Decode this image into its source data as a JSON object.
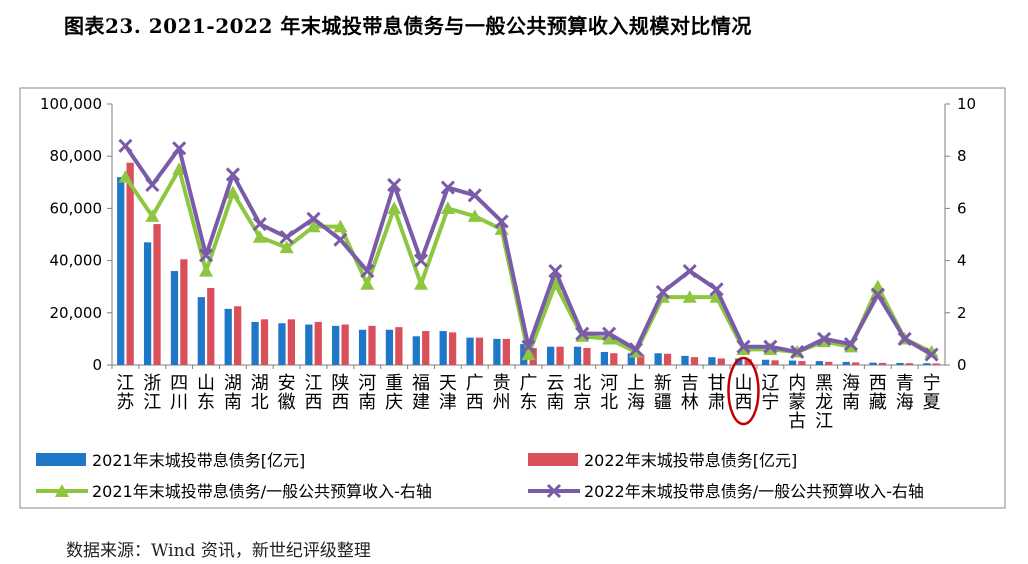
{
  "title": "图表23. 2021-2022 年末城投带息债务与一般公共预算收入规模对比情况",
  "source": "数据来源：Wind 资讯，新世纪评级整理",
  "chart_data": {
    "type": "bar",
    "categories": [
      "江苏",
      "浙江",
      "四川",
      "山东",
      "湖南",
      "湖北",
      "安徽",
      "江西",
      "陕西",
      "河南",
      "重庆",
      "福建",
      "天津",
      "广西",
      "贵州",
      "广东",
      "云南",
      "北京",
      "河北",
      "上海",
      "新疆",
      "吉林",
      "甘肃",
      "山西",
      "辽宁",
      "内蒙古",
      "黑龙江",
      "海南",
      "西藏",
      "青海",
      "宁夏"
    ],
    "ylim_left": [
      0,
      100000
    ],
    "ylim_right": [
      0,
      10
    ],
    "left_ticks": [
      "0",
      "20,000",
      "40,000",
      "60,000",
      "80,000",
      "100,000"
    ],
    "right_ticks": [
      "0",
      "2",
      "4",
      "6",
      "8",
      "10"
    ],
    "series": [
      {
        "name": "2021年末城投带息债务[亿元]",
        "type": "bar",
        "axis": "left",
        "color": "#1F77C8",
        "values": [
          72000,
          47000,
          36000,
          26000,
          21500,
          16500,
          16000,
          15500,
          15000,
          13500,
          13500,
          11000,
          13000,
          10500,
          10000,
          8000,
          7000,
          7000,
          5000,
          4500,
          4500,
          3500,
          3000,
          2500,
          2000,
          1700,
          1500,
          1200,
          900,
          800,
          700
        ]
      },
      {
        "name": "2022年末城投带息债务[亿元]",
        "type": "bar",
        "axis": "left",
        "color": "#D9505A",
        "values": [
          77500,
          54000,
          40500,
          29500,
          22500,
          17500,
          17500,
          16500,
          15500,
          15000,
          14500,
          13000,
          12500,
          10500,
          10000,
          6500,
          7000,
          6500,
          4500,
          4000,
          4300,
          3000,
          2500,
          2200,
          1800,
          1500,
          1200,
          1000,
          800,
          700,
          600
        ]
      },
      {
        "name": "2021年末城投带息债务/一般公共预算收入-右轴",
        "type": "line",
        "axis": "right",
        "color": "#8DC63F",
        "values": [
          7.2,
          5.7,
          7.5,
          3.6,
          6.6,
          4.9,
          4.5,
          5.3,
          5.3,
          3.1,
          6.0,
          3.1,
          6.0,
          5.7,
          5.2,
          0.4,
          3.1,
          1.1,
          1.0,
          0.5,
          2.6,
          2.6,
          2.6,
          0.6,
          0.6,
          0.5,
          0.9,
          0.7,
          3.0,
          1.0,
          0.5
        ]
      },
      {
        "name": "2022年末城投带息债务/一般公共预算收入-右轴",
        "type": "line",
        "axis": "right",
        "color": "#7A5BA8",
        "values": [
          8.4,
          6.9,
          8.3,
          4.2,
          7.3,
          5.4,
          4.9,
          5.6,
          4.8,
          3.6,
          6.9,
          4.0,
          6.8,
          6.5,
          5.5,
          0.7,
          3.6,
          1.2,
          1.2,
          0.6,
          2.8,
          3.6,
          2.9,
          0.7,
          0.7,
          0.5,
          1.0,
          0.8,
          2.7,
          1.0,
          0.4
        ]
      }
    ],
    "annotation": {
      "type": "circle",
      "category": "山西",
      "color": "#C00000"
    },
    "legend_placement": "bottom"
  }
}
